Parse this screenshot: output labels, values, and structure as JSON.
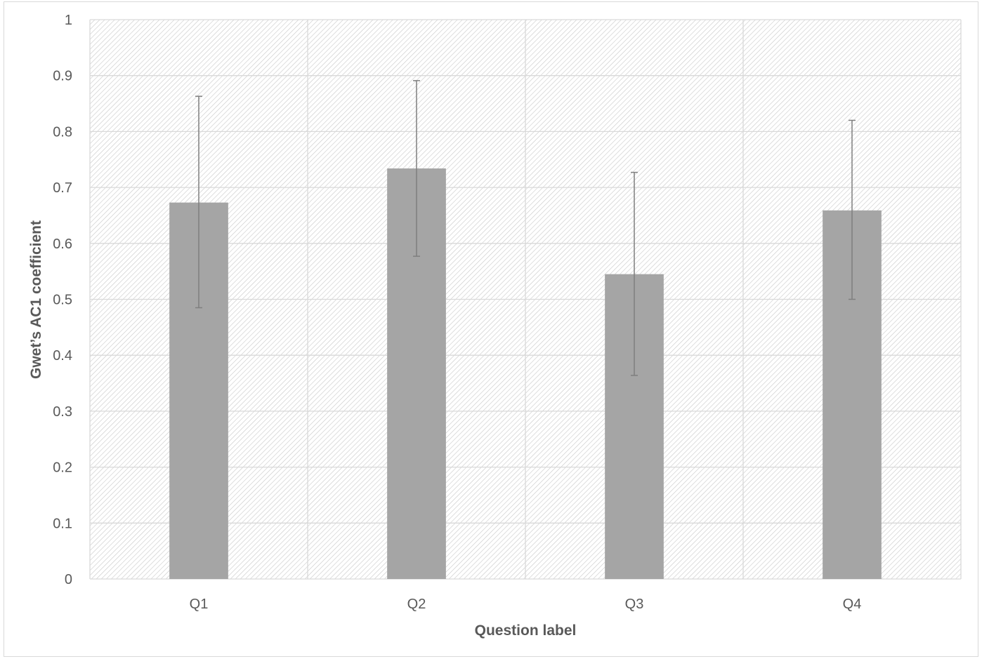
{
  "chart_data": {
    "type": "bar",
    "title": "",
    "xlabel": "Question label",
    "ylabel": "Gwet’s AC1 coefficient",
    "ylim": [
      0,
      1
    ],
    "yticks": [
      0,
      0.1,
      0.2,
      0.3,
      0.4,
      0.5,
      0.6,
      0.7,
      0.8,
      0.9,
      1
    ],
    "ytick_labels": [
      "0",
      "0.1",
      "0.2",
      "0.3",
      "0.4",
      "0.5",
      "0.6",
      "0.7",
      "0.8",
      "0.9",
      "1"
    ],
    "categories": [
      "Q1",
      "Q2",
      "Q3",
      "Q4"
    ],
    "values": [
      0.673,
      0.734,
      0.545,
      0.659
    ],
    "error_low": [
      0.485,
      0.577,
      0.364,
      0.5
    ],
    "error_high": [
      0.863,
      0.891,
      0.727,
      0.82
    ],
    "grid": true,
    "legend": "none",
    "colors": {
      "bar": "#a5a5a5",
      "error_bar": "#7f7f7f",
      "grid": "#d9d9d9",
      "hatch": "#c8c8c8",
      "text": "#595959"
    }
  }
}
